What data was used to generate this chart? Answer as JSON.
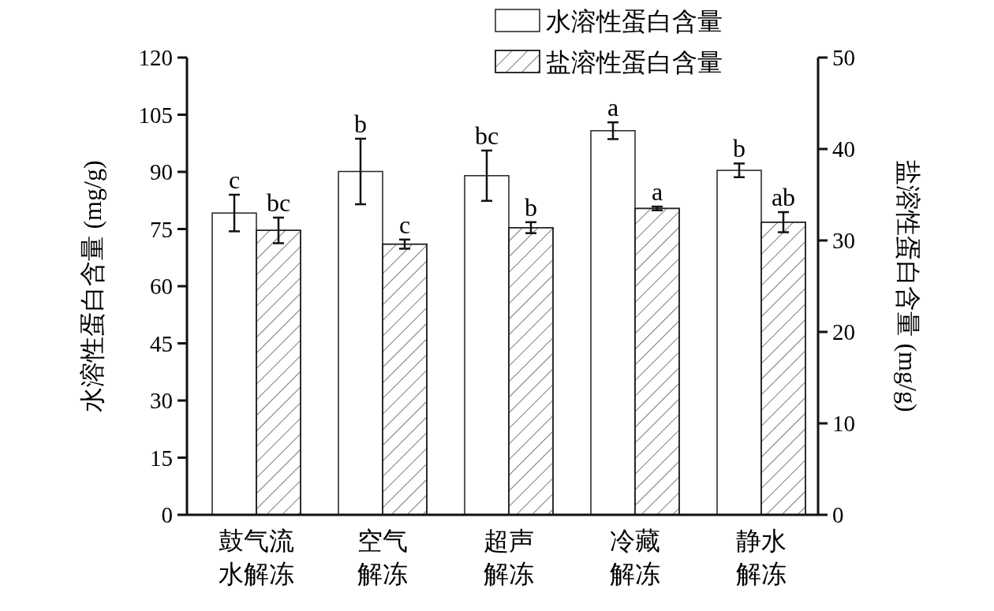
{
  "chart_data": {
    "type": "bar",
    "categories": [
      "鼓气流水解冻",
      "空气解冻",
      "超声解冻",
      "冷藏解冻",
      "静水解冻"
    ],
    "series": [
      {
        "name": "水溶性蛋白含量",
        "color": "#ffffff",
        "values": [
          79.2,
          90.1,
          89.0,
          100.8,
          90.4
        ],
        "errors": [
          4.8,
          8.6,
          6.6,
          2.2,
          1.8
        ]
      },
      {
        "name": "盐溶性蛋白含量",
        "color": "#ffffff",
        "axis": "y2",
        "values": [
          31.1,
          29.6,
          31.4,
          33.5,
          32.0
        ],
        "errors": [
          1.4,
          0.5,
          0.6,
          0.2,
          1.1
        ]
      }
    ],
    "ylabel": "水溶性蛋白含量 (mg/g)",
    "y2label": "盐溶性蛋白含量 (mg/g)",
    "ylim": [
      0,
      120
    ],
    "yticks": [
      0,
      15,
      30,
      45,
      60,
      75,
      90,
      105,
      120
    ],
    "y2lim": [
      0,
      50
    ],
    "y2ticks": [
      0,
      10,
      20,
      30,
      40,
      50
    ],
    "annotations": [
      "c",
      "b",
      "bc",
      "a",
      "b",
      "bc",
      "c",
      "b",
      "a",
      "ab"
    ],
    "legend": "top right",
    "grid": false
  }
}
